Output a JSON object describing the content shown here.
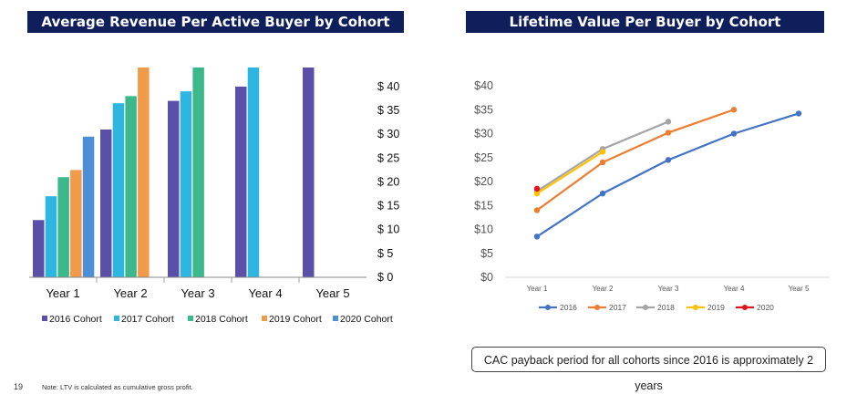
{
  "page": {
    "number": "19",
    "footnote": "Note: LTV is calculated as cumulative gross profit.",
    "callout": "CAC payback period for all cohorts since 2016 is approximately 2 years"
  },
  "chart_data": [
    {
      "type": "bar",
      "title": "Average Revenue Per Active Buyer by Cohort",
      "categories": [
        "Year 1",
        "Year 2",
        "Year 3",
        "Year 4",
        "Year 5"
      ],
      "series": [
        {
          "name": "2016 Cohort",
          "color": "#5b4fa8",
          "values": [
            12,
            31,
            37,
            40,
            44
          ]
        },
        {
          "name": "2017 Cohort",
          "color": "#2fb6e0",
          "values": [
            17,
            36.5,
            39,
            44,
            null
          ]
        },
        {
          "name": "2018 Cohort",
          "color": "#3cb88a",
          "values": [
            21,
            38,
            44,
            null,
            null
          ]
        },
        {
          "name": "2019 Cohort",
          "color": "#f19a4a",
          "values": [
            22.5,
            44,
            null,
            null,
            null
          ]
        },
        {
          "name": "2020 Cohort",
          "color": "#4c8fd6",
          "values": [
            29.5,
            null,
            null,
            null,
            null
          ]
        }
      ],
      "ylim": [
        0,
        44
      ],
      "yticks": [
        {
          "value": 0,
          "label": "$ 0"
        },
        {
          "value": 5,
          "label": "$ 5"
        },
        {
          "value": 10,
          "label": "$ 10"
        },
        {
          "value": 15,
          "label": "$ 15"
        },
        {
          "value": 20,
          "label": "$ 20"
        },
        {
          "value": 25,
          "label": "$ 25"
        },
        {
          "value": 30,
          "label": "$ 30"
        },
        {
          "value": 35,
          "label": "$ 35"
        },
        {
          "value": 40,
          "label": "$ 40"
        }
      ],
      "legend": "bottom"
    },
    {
      "type": "line",
      "title": "Lifetime Value Per Buyer by Cohort",
      "categories": [
        "Year 1",
        "Year 2",
        "Year 3",
        "Year 4",
        "Year 5"
      ],
      "series": [
        {
          "name": "2016",
          "color": "#4472c4",
          "values": [
            8.5,
            17.5,
            24.5,
            30,
            34.2
          ]
        },
        {
          "name": "2017",
          "color": "#ed7d31",
          "values": [
            14,
            24,
            30.2,
            35,
            null
          ]
        },
        {
          "name": "2018",
          "color": "#a5a5a5",
          "values": [
            18,
            26.8,
            32.5,
            null,
            null
          ]
        },
        {
          "name": "2019",
          "color": "#ffc000",
          "values": [
            17.5,
            26.2,
            null,
            null,
            null
          ]
        },
        {
          "name": "2020",
          "color": "#e0141e",
          "values": [
            18.5,
            null,
            null,
            null,
            null
          ]
        }
      ],
      "ylim": [
        0,
        40
      ],
      "yticks": [
        {
          "value": 0,
          "label": "$0"
        },
        {
          "value": 5,
          "label": "$5"
        },
        {
          "value": 10,
          "label": "$10"
        },
        {
          "value": 15,
          "label": "$15"
        },
        {
          "value": 20,
          "label": "$20"
        },
        {
          "value": 25,
          "label": "$25"
        },
        {
          "value": 30,
          "label": "$30"
        },
        {
          "value": 35,
          "label": "$35"
        },
        {
          "value": 40,
          "label": "$40"
        }
      ],
      "legend": "bottom"
    }
  ]
}
